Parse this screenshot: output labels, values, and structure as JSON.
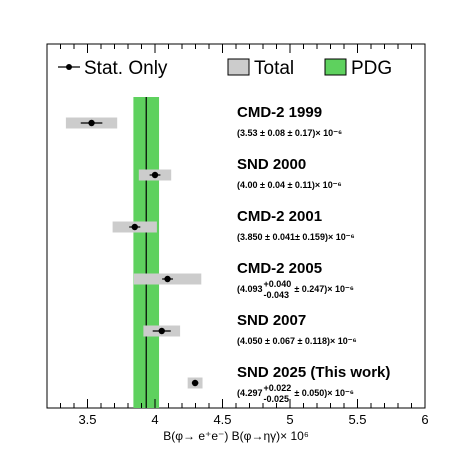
{
  "chart_data": {
    "type": "scatter",
    "xlabel": "B(φ→ e⁺e⁻) B(φ→ηγ)× 10⁶",
    "xlim": [
      3.2,
      6.0
    ],
    "x_ticks": [
      "3.5",
      "4",
      "4.5",
      "5",
      "5.5",
      "6"
    ],
    "x_tick_values": [
      3.5,
      4.0,
      4.5,
      5.0,
      5.5,
      6.0
    ],
    "legend": {
      "placement": "top",
      "entries": [
        "Stat. Only",
        "Total",
        "PDG"
      ]
    },
    "pdg_band": {
      "center": 3.935,
      "low": 3.84,
      "high": 4.03,
      "color": "#5ed15e"
    },
    "colors": {
      "total_band": "#cccccc",
      "marker": "#000000"
    },
    "measurements": [
      {
        "title": "CMD-2 1999",
        "value": 3.53,
        "stat": 0.08,
        "total": 0.19,
        "text": "(3.53 ± 0.08 ± 0.17)× 10⁻⁶"
      },
      {
        "title": "SND 2000",
        "value": 4.0,
        "stat": 0.04,
        "total": 0.12,
        "text": "(4.00 ± 0.04 ± 0.11)× 10⁻⁶"
      },
      {
        "title": "CMD-2 2001",
        "value": 3.85,
        "stat": 0.041,
        "total": 0.164,
        "text": "(3.850 ± 0.041± 0.159)× 10⁻⁶"
      },
      {
        "title": "CMD-2 2005",
        "value": 4.093,
        "stat": 0.04,
        "total": 0.25,
        "text_pre": "(4.093",
        "sup": "+0.040",
        "sub": "-0.043",
        "text_post": "± 0.247)× 10⁻⁶"
      },
      {
        "title": "SND 2007",
        "value": 4.05,
        "stat": 0.067,
        "total": 0.136,
        "text": "(4.050 ± 0.067 ± 0.118)× 10⁻⁶"
      },
      {
        "title": "SND 2025 (This work)",
        "value": 4.297,
        "stat": 0.024,
        "total": 0.055,
        "text_pre": "(4.297",
        "sup": "+0.022",
        "sub": "-0.025",
        "text_post": "± 0.050)× 10⁻⁶"
      }
    ]
  }
}
